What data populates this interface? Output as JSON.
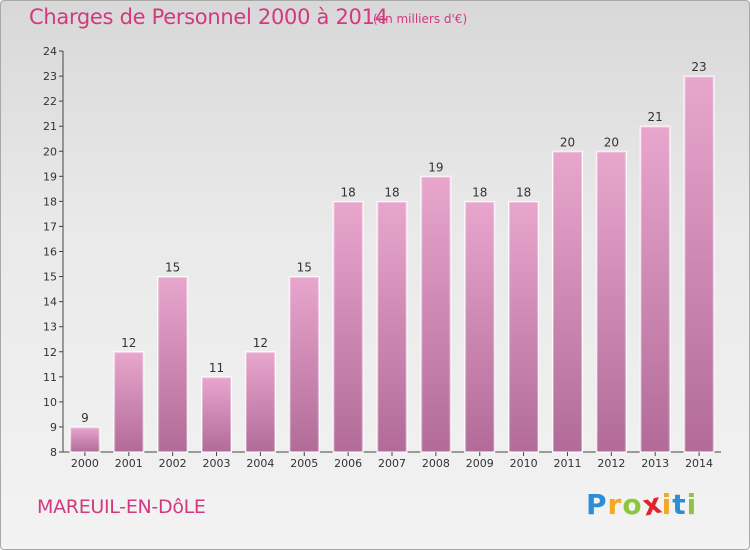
{
  "title": "Charges de Personnel 2000 à 2014",
  "subtitle": "(en milliers d'€)",
  "place": "MAREUIL-EN-DôLE",
  "logo": {
    "letters": [
      "P",
      "r",
      "o",
      "x",
      "i",
      "t",
      "i"
    ],
    "colors": [
      "#2a8fd6",
      "#f5a623",
      "#8cc63f",
      "#e2232a",
      "#f5a623",
      "#2a8fd6",
      "#8cc63f"
    ]
  },
  "colors": {
    "accent": "#d2397f",
    "bar_top": "#e8a6cd",
    "bar_bottom": "#b26b98"
  },
  "chart_data": {
    "type": "bar",
    "categories": [
      "2000",
      "2001",
      "2002",
      "2003",
      "2004",
      "2005",
      "2006",
      "2007",
      "2008",
      "2009",
      "2010",
      "2011",
      "2012",
      "2013",
      "2014"
    ],
    "values": [
      9,
      12,
      15,
      11,
      12,
      15,
      18,
      18,
      19,
      18,
      18,
      20,
      20,
      21,
      23
    ],
    "ylim": [
      8,
      24
    ],
    "yticks": [
      "8",
      "9",
      "10",
      "11",
      "12",
      "13",
      "14",
      "15",
      "16",
      "17",
      "18",
      "19",
      "20",
      "21",
      "22",
      "23",
      "24"
    ],
    "grid": false,
    "data_labels": true
  }
}
